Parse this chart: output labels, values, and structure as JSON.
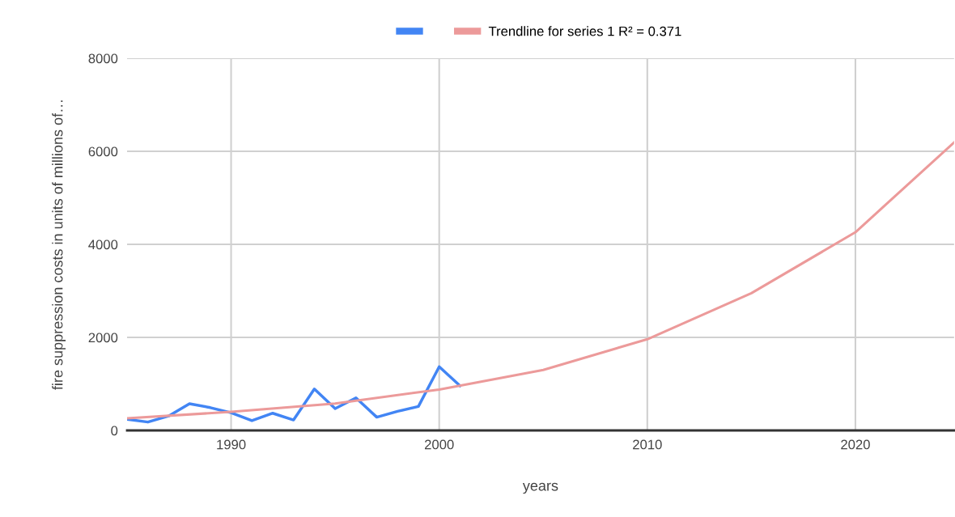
{
  "chart_data": {
    "type": "line",
    "xlabel": "years",
    "ylabel": "fire suppression costs in units of millions of…",
    "xlim": [
      1985,
      2024.74
    ],
    "xticks": [
      1990,
      2000,
      2010,
      2020
    ],
    "ylim": [
      0,
      8000
    ],
    "yticks": [
      0,
      2000,
      4000,
      6000,
      8000
    ],
    "grid": true,
    "legend": "top",
    "series": [
      {
        "color": "#4285f4",
        "x": [
          1985,
          1986,
          1987,
          1988,
          1989,
          1990,
          1991,
          1992,
          1993,
          1994,
          1995,
          1996,
          1997,
          1998,
          1999,
          2000,
          2001
        ],
        "values": [
          240,
          180,
          310,
          575,
          490,
          380,
          210,
          370,
          225,
          890,
          470,
          700,
          285,
          410,
          515,
          1370,
          960
        ]
      },
      {
        "name": "Trendline for series 1 R² = 0.371",
        "color": "#ec9a9a",
        "x": [
          1985,
          1990,
          1995,
          2000,
          2005,
          2010,
          2015,
          2020,
          2024.74
        ],
        "values": [
          260,
          400,
          580,
          880,
          1300,
          1960,
          2950,
          4260,
          6190
        ]
      }
    ]
  }
}
